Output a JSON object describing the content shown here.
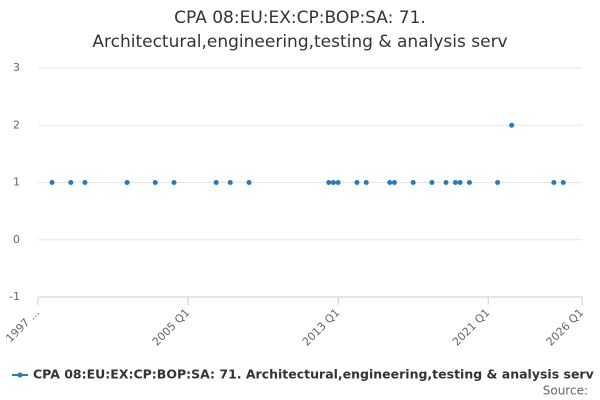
{
  "chart_data": {
    "type": "scatter",
    "title": "CPA 08:EU:EX:CP:BOP:SA: 71. Architectural,engineering,testing & analysis serv",
    "source": "Source:",
    "series": [
      {
        "name": "CPA 08:EU:EX:CP:BOP:SA: 71. Architectural,engineering,testing & analysis serv",
        "color": "#2a7ab8",
        "x": [
          "1997 Q4",
          "1998 Q4",
          "1999 Q3",
          "2001 Q4",
          "2003 Q2",
          "2004 Q2",
          "2006 Q3",
          "2007 Q2",
          "2008 Q2",
          "2012 Q3",
          "2012 Q4",
          "2013 Q1",
          "2014 Q1",
          "2014 Q3",
          "2015 Q4",
          "2016 Q1",
          "2017 Q1",
          "2018 Q1",
          "2018 Q4",
          "2019 Q2",
          "2019 Q3",
          "2020 Q1",
          "2021 Q3",
          "2022 Q2",
          "2024 Q3",
          "2025 Q1"
        ],
        "values": [
          1,
          1,
          1,
          1,
          1,
          1,
          1,
          1,
          1,
          1,
          1,
          1,
          1,
          1,
          1,
          1,
          1,
          1,
          1,
          1,
          1,
          1,
          1,
          2,
          1,
          1
        ]
      }
    ],
    "xlim": [
      "1997 Q1",
      "2026 Q1"
    ],
    "xticks": [
      {
        "value": "1997 Q1",
        "label": "1997 ..."
      },
      "2005 Q1",
      "2013 Q1",
      "2021 Q1",
      "2026 Q1"
    ],
    "ylim": [
      -1,
      3
    ],
    "yticks": [
      -1,
      0,
      1,
      2,
      3
    ],
    "grid": true,
    "legend": "bottom"
  }
}
